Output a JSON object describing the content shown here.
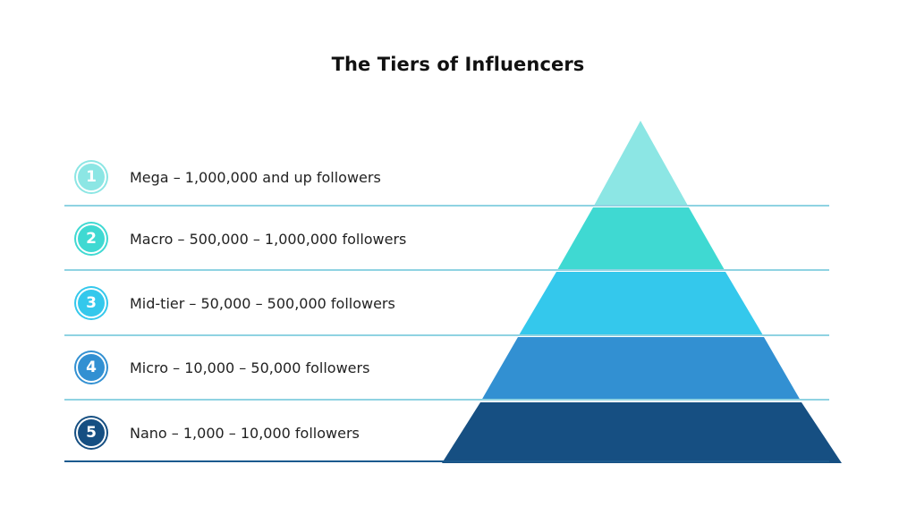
{
  "title": "The Tiers of Influencers",
  "tiers": [
    {
      "number": "1",
      "label": "Mega – 1,000,000 and up followers",
      "color": "#8ce6e4",
      "badge_color": "#8ce6e4"
    },
    {
      "number": "2",
      "label": "Macro – 500,000 – 1,000,000 followers",
      "color": "#3fd9d2",
      "badge_color": "#3fd9d2"
    },
    {
      "number": "3",
      "label": "Mid-tier – 50,000 – 500,000 followers",
      "color": "#34c8ec",
      "badge_color": "#34c8ec"
    },
    {
      "number": "4",
      "label": "Micro – 10,000 – 50,000 followers",
      "color": "#3290d2",
      "badge_color": "#3290d2"
    },
    {
      "number": "5",
      "label": "Nano – 1,000 – 10,000 followers",
      "color": "#164f82",
      "badge_color": "#164f82"
    }
  ],
  "divider_color": "#8fd3e2",
  "base_line_color": "#1b5a8e"
}
